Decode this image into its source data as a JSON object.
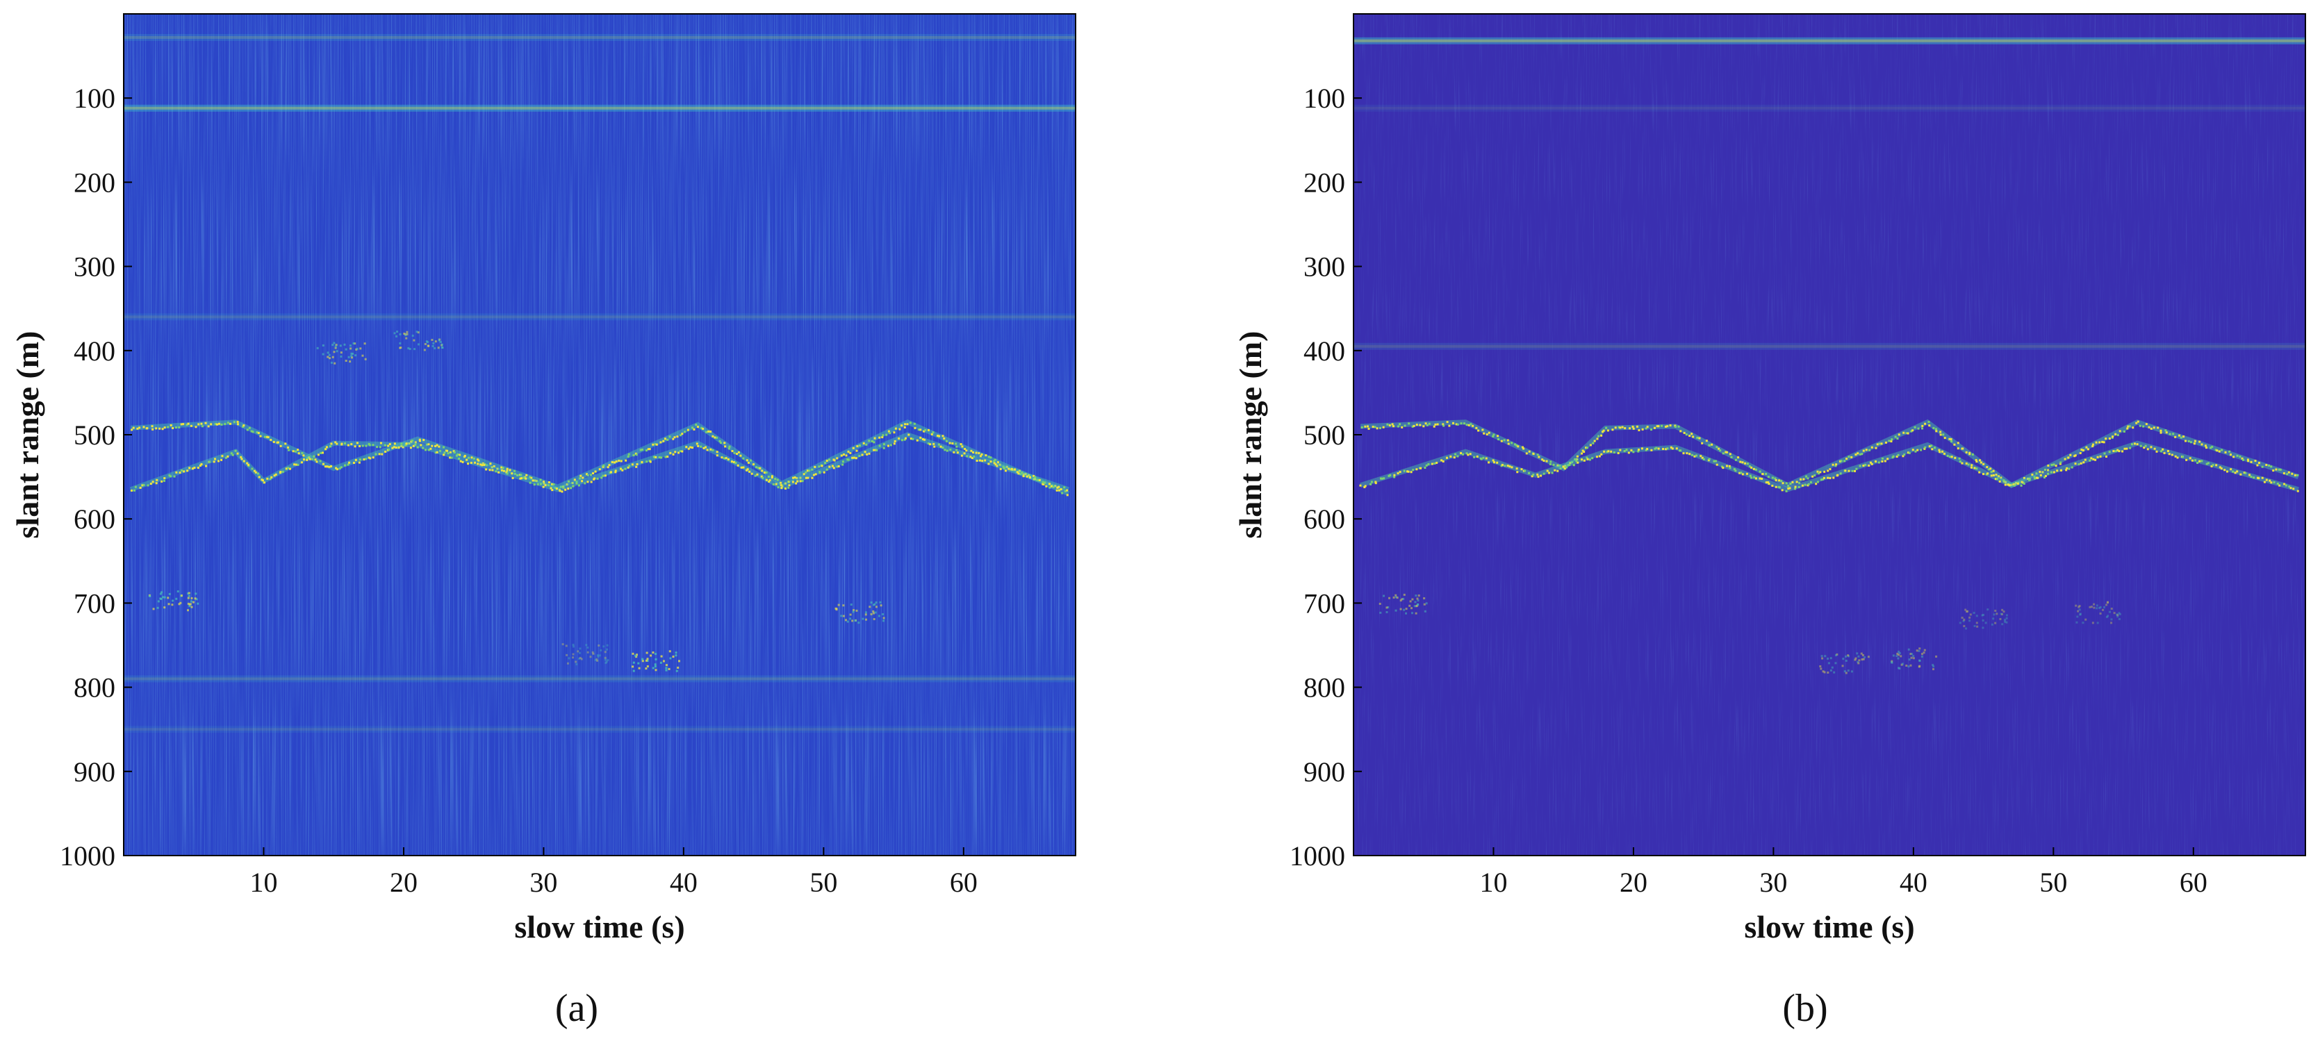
{
  "chart_data": [
    {
      "type": "heatmap",
      "panel_label": "(a)",
      "xlabel": "slow time (s)",
      "ylabel": "slant range (m)",
      "xlim": [
        0,
        68
      ],
      "ylim": [
        0,
        1000
      ],
      "y_reversed": true,
      "xticks": [
        10,
        20,
        30,
        40,
        50,
        60
      ],
      "yticks": [
        100,
        200,
        300,
        400,
        500,
        600,
        700,
        800,
        900,
        1000
      ],
      "colormap": "parula",
      "background_color": "#2b45c8",
      "features": {
        "zigzag_tracks": [
          {
            "points": [
              [
                0.5,
                492
              ],
              [
                8,
                485
              ],
              [
                15,
                540
              ],
              [
                21,
                505
              ],
              [
                31,
                562
              ],
              [
                41,
                488
              ],
              [
                47,
                558
              ],
              [
                56,
                485
              ],
              [
                67.5,
                570
              ]
            ]
          },
          {
            "points": [
              [
                0.5,
                565
              ],
              [
                8,
                520
              ],
              [
                10,
                555
              ],
              [
                15,
                510
              ],
              [
                21,
                512
              ],
              [
                31,
                565
              ],
              [
                41,
                510
              ],
              [
                47,
                562
              ],
              [
                56,
                500
              ],
              [
                67.5,
                565
              ]
            ]
          }
        ],
        "horizontal_bands": [
          {
            "range": 112,
            "strength": 0.75
          },
          {
            "range": 28,
            "strength": 0.35
          },
          {
            "range": 360,
            "strength": 0.25
          },
          {
            "range": 790,
            "strength": 0.3
          },
          {
            "range": 850,
            "strength": 0.2
          }
        ],
        "blobs": [
          {
            "x": 3.5,
            "range": 695,
            "strength": 0.7
          },
          {
            "x": 15.5,
            "range": 402,
            "strength": 0.6
          },
          {
            "x": 21,
            "range": 388,
            "strength": 0.55
          },
          {
            "x": 38,
            "range": 768,
            "strength": 0.8
          },
          {
            "x": 52.5,
            "range": 710,
            "strength": 0.6
          },
          {
            "x": 33,
            "range": 760,
            "strength": 0.35
          }
        ]
      }
    },
    {
      "type": "heatmap",
      "panel_label": "(b)",
      "xlabel": "slow time (s)",
      "ylabel": "slant range (m)",
      "xlim": [
        0,
        68
      ],
      "ylim": [
        0,
        1000
      ],
      "y_reversed": true,
      "xticks": [
        10,
        20,
        30,
        40,
        50,
        60
      ],
      "yticks": [
        100,
        200,
        300,
        400,
        500,
        600,
        700,
        800,
        900,
        1000
      ],
      "colormap": "parula",
      "background_color": "#3a2fb0",
      "features": {
        "zigzag_tracks": [
          {
            "points": [
              [
                0.5,
                490
              ],
              [
                8,
                485
              ],
              [
                15,
                540
              ],
              [
                18,
                492
              ],
              [
                23,
                490
              ],
              [
                31,
                560
              ],
              [
                41,
                485
              ],
              [
                47,
                560
              ],
              [
                56,
                485
              ],
              [
                67.5,
                550
              ]
            ]
          },
          {
            "points": [
              [
                0.5,
                560
              ],
              [
                8,
                520
              ],
              [
                13,
                548
              ],
              [
                18,
                520
              ],
              [
                23,
                515
              ],
              [
                31,
                565
              ],
              [
                41,
                512
              ],
              [
                47,
                560
              ],
              [
                56,
                510
              ],
              [
                67.5,
                565
              ]
            ]
          }
        ],
        "horizontal_bands": [
          {
            "range": 32,
            "strength": 0.8
          },
          {
            "range": 395,
            "strength": 0.25
          },
          {
            "range": 112,
            "strength": 0.15
          }
        ],
        "blobs": [
          {
            "x": 3.5,
            "range": 700,
            "strength": 0.5
          },
          {
            "x": 35,
            "range": 770,
            "strength": 0.45
          },
          {
            "x": 40,
            "range": 765,
            "strength": 0.45
          },
          {
            "x": 45,
            "range": 718,
            "strength": 0.35
          },
          {
            "x": 53,
            "range": 710,
            "strength": 0.35
          }
        ]
      }
    }
  ]
}
